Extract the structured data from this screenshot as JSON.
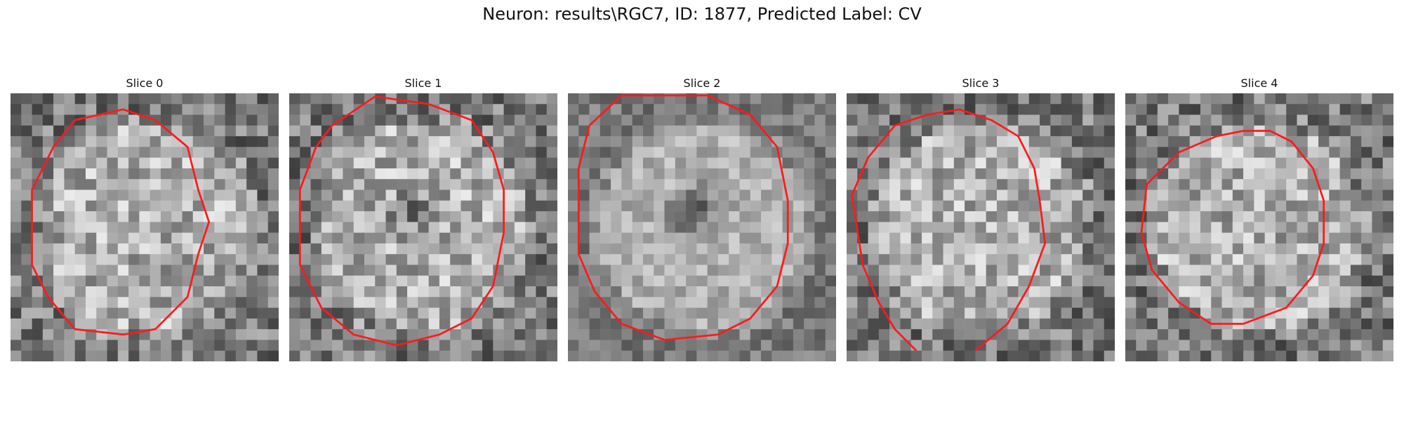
{
  "suptitle": "Neuron: results\\RGC7, ID: 1877, Predicted Label: CV",
  "panels": [
    {
      "title": "Slice 0",
      "seed": 11,
      "center": "bright",
      "hole": 0,
      "contour": [
        [
          6,
          2.5
        ],
        [
          10.5,
          1.5
        ],
        [
          13.5,
          2.5
        ],
        [
          16.5,
          5
        ],
        [
          17.5,
          9
        ],
        [
          18.5,
          12
        ],
        [
          17.5,
          15
        ],
        [
          16.5,
          19
        ],
        [
          13.5,
          22
        ],
        [
          10.5,
          22.5
        ],
        [
          6,
          22
        ],
        [
          3.5,
          19
        ],
        [
          2,
          16
        ],
        [
          2,
          9
        ],
        [
          4,
          5
        ]
      ]
    },
    {
      "title": "Slice 1",
      "seed": 23,
      "center": "bright",
      "hole": 0.55,
      "contour": [
        [
          4,
          3
        ],
        [
          8,
          0.3
        ],
        [
          13,
          1
        ],
        [
          17,
          2.5
        ],
        [
          19,
          5.5
        ],
        [
          20,
          9
        ],
        [
          20,
          13
        ],
        [
          19,
          18
        ],
        [
          17,
          21
        ],
        [
          14,
          22.5
        ],
        [
          10,
          23.5
        ],
        [
          6,
          22.5
        ],
        [
          3,
          20
        ],
        [
          1,
          16
        ],
        [
          1,
          9
        ],
        [
          2.5,
          5
        ]
      ]
    },
    {
      "title": "Slice 2",
      "seed": 37,
      "center": "bright",
      "hole": 1,
      "contour": [
        [
          2,
          3
        ],
        [
          5,
          0.2
        ],
        [
          13,
          0.2
        ],
        [
          17,
          2
        ],
        [
          19.5,
          5
        ],
        [
          20.5,
          10
        ],
        [
          20.5,
          14
        ],
        [
          19.5,
          18
        ],
        [
          17,
          21
        ],
        [
          14,
          22.5
        ],
        [
          9,
          23
        ],
        [
          5,
          21.5
        ],
        [
          2.5,
          18.5
        ],
        [
          1,
          15
        ],
        [
          1,
          7
        ]
      ]
    },
    {
      "title": "Slice 3",
      "seed": 53,
      "center": "bright",
      "hole": 0,
      "contour": [
        [
          6.5,
          24
        ],
        [
          4.5,
          22
        ],
        [
          3,
          19.5
        ],
        [
          1.5,
          16
        ],
        [
          0.5,
          9.5
        ],
        [
          2,
          6
        ],
        [
          4.5,
          3
        ],
        [
          7.5,
          2
        ],
        [
          10.5,
          1.5
        ],
        [
          13.5,
          2.5
        ],
        [
          16,
          4
        ],
        [
          17.5,
          7
        ],
        [
          18,
          10
        ],
        [
          18.5,
          14
        ],
        [
          17,
          18
        ],
        [
          15,
          21.5
        ],
        [
          12,
          24
        ]
      ]
    },
    {
      "title": "Slice 4",
      "seed": 71,
      "center": "bright",
      "hole": 0,
      "contour": [
        [
          5,
          5.5
        ],
        [
          8.5,
          4
        ],
        [
          11,
          3.5
        ],
        [
          13.5,
          3.5
        ],
        [
          15.5,
          4.5
        ],
        [
          17.5,
          7
        ],
        [
          18.5,
          10
        ],
        [
          18.5,
          14
        ],
        [
          17.5,
          17
        ],
        [
          15,
          20
        ],
        [
          11,
          21.5
        ],
        [
          8,
          21.5
        ],
        [
          5,
          19.5
        ],
        [
          2.5,
          16.5
        ],
        [
          1.5,
          13
        ],
        [
          2,
          8.5
        ]
      ]
    }
  ],
  "colors": {
    "contour": "#ff1a1a",
    "background": "#ffffff"
  }
}
